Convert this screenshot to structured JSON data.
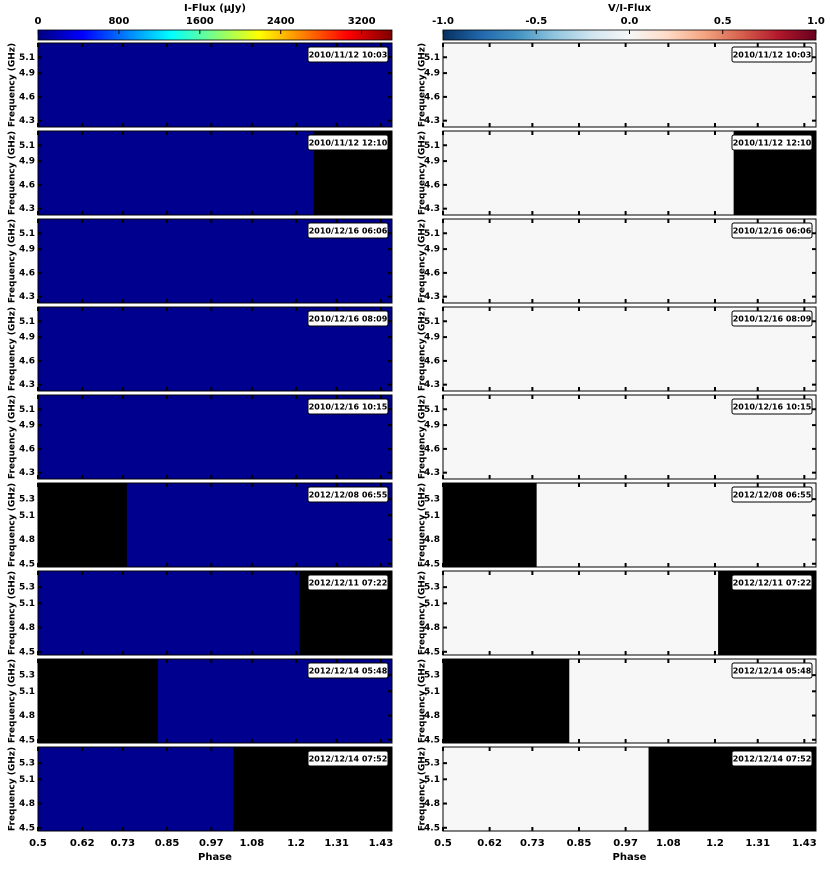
{
  "chart_data": [
    {
      "type": "heatmap",
      "colorbar_label": "I-Flux (μJy)",
      "colormap": "jet",
      "background": "#00008f",
      "clim": [
        0,
        3500
      ],
      "cticks": [
        0,
        800,
        1600,
        2400,
        3200
      ],
      "xlabel": "Phase",
      "xlim": [
        0.5,
        1.46
      ],
      "xticks": [
        0.5,
        0.62,
        0.73,
        0.85,
        0.97,
        1.08,
        1.2,
        1.31,
        1.43
      ],
      "panels": [
        {
          "date": "2010/11/12 10:03",
          "ylabel": "Frequency (GHz)",
          "ylim": [
            4.22,
            5.28
          ],
          "yticks": [
            4.3,
            4.6,
            4.9,
            5.1
          ]
        },
        {
          "date": "2010/11/12 12:10",
          "ylabel": "Frequency (GHz)",
          "ylim": [
            4.22,
            5.28
          ],
          "yticks": [
            4.3,
            4.6,
            4.9,
            5.1
          ],
          "masked": [
            1.248,
            1.46
          ]
        },
        {
          "date": "2010/12/16 06:06",
          "ylabel": "Frequency (GHz)",
          "ylim": [
            4.22,
            5.28
          ],
          "yticks": [
            4.3,
            4.6,
            4.9,
            5.1
          ]
        },
        {
          "date": "2010/12/16 08:09",
          "ylabel": "Frequency (GHz)",
          "ylim": [
            4.22,
            5.28
          ],
          "yticks": [
            4.3,
            4.6,
            4.9,
            5.1
          ]
        },
        {
          "date": "2010/12/16 10:15",
          "ylabel": "Frequency (GHz)",
          "ylim": [
            4.22,
            5.28
          ],
          "yticks": [
            4.3,
            4.6,
            4.9,
            5.1
          ]
        },
        {
          "date": "2012/12/08 06:55",
          "ylabel": "Frequency (GHz)",
          "ylim": [
            4.46,
            5.5
          ],
          "yticks": [
            4.5,
            4.8,
            5.1,
            5.3
          ],
          "masked": [
            0.5,
            0.741
          ]
        },
        {
          "date": "2012/12/11 07:22",
          "ylabel": "Frequency (GHz)",
          "ylim": [
            4.46,
            5.5
          ],
          "yticks": [
            4.5,
            4.8,
            5.1,
            5.3
          ],
          "masked": [
            1.208,
            1.46
          ]
        },
        {
          "date": "2012/12/14 05:48",
          "ylabel": "Frequency (GHz)",
          "ylim": [
            4.46,
            5.5
          ],
          "yticks": [
            4.5,
            4.8,
            5.1,
            5.3
          ],
          "masked": [
            0.5,
            0.825
          ]
        },
        {
          "date": "2012/12/14 07:52",
          "ylabel": "Frequency (GHz)",
          "ylim": [
            4.46,
            5.5
          ],
          "yticks": [
            4.5,
            4.8,
            5.1,
            5.3
          ],
          "masked": [
            1.029,
            1.46
          ]
        }
      ]
    },
    {
      "type": "heatmap",
      "colorbar_label": "V/I-Flux",
      "colormap": "RdBu_r",
      "background": "#f7f7f7",
      "clim": [
        -1,
        1
      ],
      "cticks": [
        {
          "value": -1,
          "label": "-1.0"
        },
        -0.5,
        {
          "value": 0,
          "label": "0.0"
        },
        0.5,
        {
          "value": 1,
          "label": "1.0"
        }
      ],
      "xlabel": "Phase",
      "xlim": [
        0.5,
        1.46
      ],
      "xticks": [
        0.5,
        0.62,
        0.73,
        0.85,
        0.97,
        1.08,
        1.2,
        1.31,
        1.43
      ],
      "panels": [
        {
          "date": "2010/11/12 10:03",
          "ylabel": "Frequency (GHz)",
          "ylim": [
            4.22,
            5.28
          ],
          "yticks": [
            4.3,
            4.6,
            4.9,
            5.1
          ]
        },
        {
          "date": "2010/11/12 12:10",
          "ylabel": "Frequency (GHz)",
          "ylim": [
            4.22,
            5.28
          ],
          "yticks": [
            4.3,
            4.6,
            4.9,
            5.1
          ],
          "masked": [
            1.248,
            1.46
          ]
        },
        {
          "date": "2010/12/16 06:06",
          "ylabel": "Frequency (GHz)",
          "ylim": [
            4.22,
            5.28
          ],
          "yticks": [
            4.3,
            4.6,
            4.9,
            5.1
          ]
        },
        {
          "date": "2010/12/16 08:09",
          "ylabel": "Frequency (GHz)",
          "ylim": [
            4.22,
            5.28
          ],
          "yticks": [
            4.3,
            4.6,
            4.9,
            5.1
          ]
        },
        {
          "date": "2010/12/16 10:15",
          "ylabel": "Frequency (GHz)",
          "ylim": [
            4.22,
            5.28
          ],
          "yticks": [
            4.3,
            4.6,
            4.9,
            5.1
          ]
        },
        {
          "date": "2012/12/08 06:55",
          "ylabel": "Frequency (GHz)",
          "ylim": [
            4.46,
            5.5
          ],
          "yticks": [
            4.5,
            4.8,
            5.1,
            5.3
          ],
          "masked": [
            0.5,
            0.741
          ]
        },
        {
          "date": "2012/12/11 07:22",
          "ylabel": "Frequency (GHz)",
          "ylim": [
            4.46,
            5.5
          ],
          "yticks": [
            4.5,
            4.8,
            5.1,
            5.3
          ],
          "masked": [
            1.208,
            1.46
          ]
        },
        {
          "date": "2012/12/14 05:48",
          "ylabel": "Frequency (GHz)",
          "ylim": [
            4.46,
            5.5
          ],
          "yticks": [
            4.5,
            4.8,
            5.1,
            5.3
          ],
          "masked": [
            0.5,
            0.825
          ]
        },
        {
          "date": "2012/12/14 07:52",
          "ylabel": "Frequency (GHz)",
          "ylim": [
            4.46,
            5.5
          ],
          "yticks": [
            4.5,
            4.8,
            5.1,
            5.3
          ],
          "masked": [
            1.029,
            1.46
          ]
        }
      ]
    }
  ]
}
